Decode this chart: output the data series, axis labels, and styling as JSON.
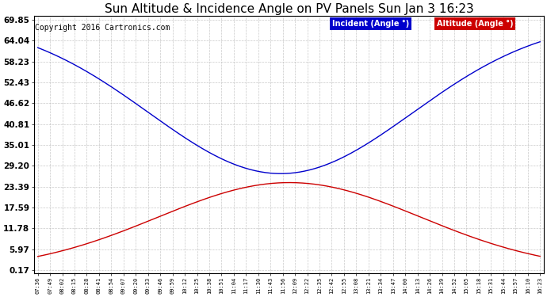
{
  "title": "Sun Altitude & Incidence Angle on PV Panels Sun Jan 3 16:23",
  "copyright": "Copyright 2016 Cartronics.com",
  "yticks": [
    0.17,
    5.97,
    11.78,
    17.59,
    23.39,
    29.2,
    35.01,
    40.81,
    46.62,
    52.43,
    58.23,
    64.04,
    69.85
  ],
  "ytick_labels": [
    "0.17",
    "5.97",
    "11.78",
    "17.59",
    "23.39",
    "29.20",
    "35.01",
    "40.81",
    "46.62",
    "52.43",
    "58.23",
    "64.04",
    "69.85"
  ],
  "xtick_labels": [
    "07:36",
    "07:49",
    "08:02",
    "08:15",
    "08:28",
    "08:41",
    "08:54",
    "09:07",
    "09:20",
    "09:33",
    "09:46",
    "09:59",
    "10:12",
    "10:25",
    "10:38",
    "10:51",
    "11:04",
    "11:17",
    "11:30",
    "11:43",
    "11:56",
    "12:09",
    "12:22",
    "12:35",
    "12:42",
    "12:55",
    "13:08",
    "13:21",
    "13:34",
    "13:47",
    "14:00",
    "14:13",
    "14:26",
    "14:39",
    "14:52",
    "15:05",
    "15:18",
    "15:31",
    "15:44",
    "15:57",
    "16:10",
    "16:23"
  ],
  "incident_color": "#0000cc",
  "altitude_color": "#cc0000",
  "background_color": "#ffffff",
  "grid_color": "#bbbbbb",
  "legend_incident_bg": "#0000cc",
  "legend_altitude_bg": "#cc0000",
  "legend_text": [
    "Incident (Angle °)",
    "Altitude (Angle °)"
  ],
  "ylim_min": 0.17,
  "ylim_max": 69.85,
  "title_fontsize": 11,
  "copyright_fontsize": 7
}
